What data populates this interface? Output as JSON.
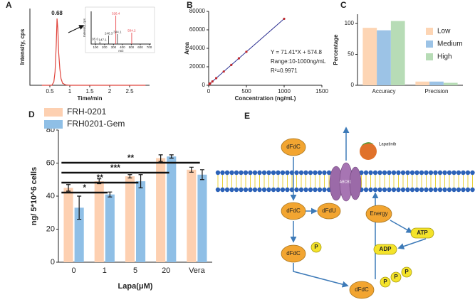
{
  "chart_data": [
    {
      "label": "A",
      "type": "line",
      "xlabel": "Time/min",
      "ylabel": "Intensity, cps",
      "color": "#e0443c",
      "x": [
        0.3,
        0.55,
        0.6,
        0.63,
        0.66,
        0.68,
        0.7,
        0.72,
        0.75,
        0.78,
        0.82,
        0.9,
        1.0,
        2.9
      ],
      "values": [
        0,
        0,
        5,
        20,
        60,
        100,
        85,
        50,
        25,
        10,
        3,
        0.5,
        0,
        0
      ],
      "xlim": [
        0,
        3
      ],
      "xticks": [
        0.5,
        1,
        1.5,
        2,
        2.5
      ],
      "ylim": [
        0,
        115
      ],
      "annotations": [
        "0.68"
      ]
    },
    {
      "type": "stem",
      "xlabel": "m/z",
      "ylabel": "Intensity, cps",
      "x": [
        95.0,
        147.1,
        246.3,
        326.4,
        344.1,
        504.2
      ],
      "x_labels": [
        "95.0",
        "147.1",
        "246.3",
        "326.4",
        "344.1",
        "504.2"
      ],
      "values": [
        10,
        8,
        30,
        100,
        35,
        40
      ],
      "colors": [
        "#333333",
        "#333333",
        "#333333",
        "#e8333a",
        "#333333",
        "#e8333a"
      ],
      "xlim": [
        50,
        720
      ],
      "xticks": [
        100,
        200,
        300,
        400,
        500,
        600,
        700
      ],
      "ylim": [
        0,
        115
      ]
    },
    {
      "label": "B",
      "type": "scatter",
      "xlabel": "Concentration (ng/mL)",
      "ylabel": "Area",
      "color": "#c0282d",
      "line_color": "#2e3192",
      "x": [
        10,
        20,
        50,
        100,
        200,
        300,
        400,
        500,
        1000
      ],
      "values": [
        1289,
        2003,
        4145,
        7715,
        14857,
        21998,
        29139,
        36280,
        71985
      ],
      "xlim": [
        0,
        1500
      ],
      "xticks": [
        0,
        500,
        1000,
        1500
      ],
      "ylim": [
        0,
        80000
      ],
      "yticks": [
        0,
        20000,
        40000,
        60000,
        80000
      ],
      "annotations": [
        "Y = 71.41*X + 574.8",
        "Range:10-1000ng/mL",
        "R²=0.9971"
      ]
    },
    {
      "label": "C",
      "type": "bar",
      "ylabel": "Percentage",
      "categories": [
        "Accuracy",
        "Precision"
      ],
      "series": [
        {
          "name": "Low",
          "color": "#fdd5b4",
          "values": [
            93,
            6
          ]
        },
        {
          "name": "Medium",
          "color": "#9cc3e6",
          "values": [
            89,
            6
          ]
        },
        {
          "name": "High",
          "color": "#b7dcb6",
          "values": [
            104,
            4
          ]
        }
      ],
      "ylim": [
        0,
        115
      ],
      "yticks": [
        0,
        50,
        100
      ],
      "legend": "right"
    },
    {
      "label": "D",
      "type": "bar",
      "xlabel": "Lapa(μM)",
      "ylabel": "ng/ 5*10^6 cells",
      "categories": [
        "0",
        "1",
        "5",
        "20",
        "Vera"
      ],
      "series": [
        {
          "name": "FRH-0201",
          "color": "#fdd0b1",
          "values": [
            45,
            49,
            52,
            63,
            56
          ],
          "errors": [
            2,
            1.5,
            1,
            2,
            1.5
          ]
        },
        {
          "name": "FRH0201-Gem",
          "color": "#8fbfe6",
          "values": [
            33,
            41,
            49,
            64,
            53
          ],
          "errors": [
            7,
            1.5,
            4,
            1,
            3
          ]
        }
      ],
      "ylim": [
        0,
        80
      ],
      "yticks": [
        0,
        20,
        40,
        60,
        80
      ],
      "legend": "top-left",
      "significance": [
        {
          "label": "*",
          "from": "0",
          "to": "1"
        },
        {
          "label": "**",
          "from": "0",
          "to": "5"
        },
        {
          "label": "***",
          "from": "0",
          "to": "20"
        },
        {
          "label": "**",
          "from": "0",
          "to": "Vera"
        }
      ]
    }
  ],
  "diagram": {
    "label": "E",
    "transporter": "ABCB1",
    "inhibitor": "Lapatinib",
    "nodes": [
      "dFdC",
      "dFdC",
      "dFdU",
      "Energy",
      "ATP",
      "ADP",
      "dFdC",
      "P",
      "dFdC",
      "P",
      "P",
      "P"
    ]
  }
}
